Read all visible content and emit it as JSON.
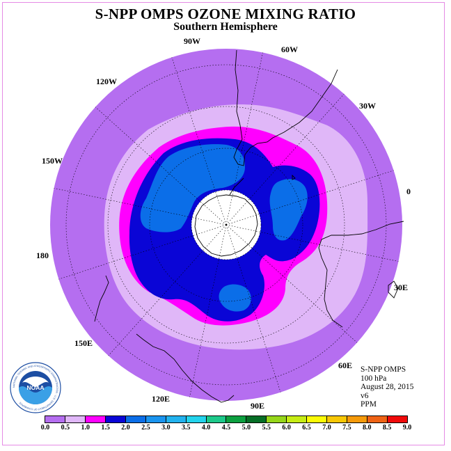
{
  "title": "S-NPP OMPS OZONE MIXING RATIO",
  "subtitle": "Southern Hemisphere",
  "longitude_labels": [
    "90W",
    "60W",
    "30W",
    "0",
    "30E",
    "60E",
    "90E",
    "120E",
    "150E",
    "180",
    "150W",
    "120W"
  ],
  "info": {
    "instrument": "S-NPP OMPS",
    "level": "100 hPa",
    "date": "August 28, 2015",
    "version": "v6",
    "units": "PPM"
  },
  "logo": {
    "text": "NOAA",
    "ring_text": "NATIONAL OCEANIC AND ATMOSPHERIC ADMINISTRATION · U.S. DEPARTMENT OF COMMERCE"
  },
  "colorbar": {
    "ticks": [
      "0.0",
      "0.5",
      "1.0",
      "1.5",
      "2.0",
      "2.5",
      "3.0",
      "3.5",
      "4.0",
      "4.5",
      "5.0",
      "5.5",
      "6.0",
      "6.5",
      "7.0",
      "7.5",
      "8.0",
      "8.5",
      "9.0"
    ],
    "colors": [
      "#b56ef0",
      "#e0b7f8",
      "#ff00ff",
      "#0a05d6",
      "#0b6ee8",
      "#1a94ef",
      "#22b2ee",
      "#23d3ec",
      "#1dc98a",
      "#0ca040",
      "#066e26",
      "#96d61a",
      "#c6ec14",
      "#fbfb05",
      "#f7c705",
      "#f59a0a",
      "#ef6315",
      "#f00a0a",
      "#9a5e3c"
    ]
  },
  "field": {
    "outer_value_ppm": "0.0-0.5",
    "colors": {
      "bg": "#b56ef0",
      "lavender": "#e0b7f8",
      "magenta": "#ff00ff",
      "dark_blue": "#0a05d6",
      "mid_blue": "#0b6ee8",
      "light_blue": "#1a94ef",
      "pole": "#ffffff"
    }
  }
}
